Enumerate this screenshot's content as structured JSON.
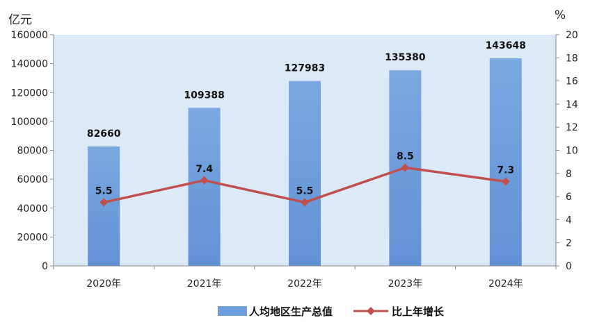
{
  "chart_data": {
    "type": "bar",
    "categories": [
      "2020年",
      "2021年",
      "2022年",
      "2023年",
      "2024年"
    ],
    "series": [
      {
        "name": "人均地区生产总值",
        "type": "bar",
        "axis": "left",
        "values": [
          82660,
          109388,
          127983,
          135380,
          143648
        ],
        "labels": [
          "82660",
          "109388",
          "127983",
          "135380",
          "143648"
        ],
        "color": "#6f9fdc"
      },
      {
        "name": "比上年增长",
        "type": "line",
        "axis": "right",
        "values": [
          5.5,
          7.4,
          5.5,
          8.5,
          7.3
        ],
        "labels": [
          "5.5",
          "7.4",
          "5.5",
          "8.5",
          "7.3"
        ],
        "color": "#c0504d"
      }
    ],
    "y_left": {
      "unit": "亿元",
      "ylim": [
        0,
        160000
      ],
      "ticks": [
        "0",
        "20000",
        "40000",
        "60000",
        "80000",
        "100000",
        "120000",
        "140000",
        "160000"
      ]
    },
    "y_right": {
      "unit": "%",
      "ylim": [
        0,
        20
      ],
      "ticks": [
        "0",
        "2",
        "4",
        "6",
        "8",
        "10",
        "12",
        "14",
        "16",
        "18",
        "20"
      ]
    },
    "plot_background": "#dce9f6",
    "grid": false,
    "legend_position": "bottom-center"
  }
}
